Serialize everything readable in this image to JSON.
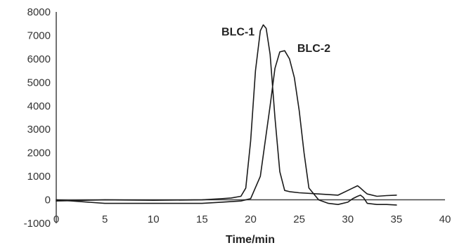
{
  "chart_data": {
    "type": "line",
    "title": "",
    "xlabel": "Time/min",
    "ylabel": "",
    "xlim": [
      0,
      40
    ],
    "ylim": [
      -1000,
      8000
    ],
    "x_ticks": [
      0,
      5,
      10,
      15,
      20,
      25,
      30,
      35,
      40
    ],
    "y_ticks": [
      -1000,
      0,
      1000,
      2000,
      3000,
      4000,
      5000,
      6000,
      7000,
      8000
    ],
    "grid": false,
    "legend": "none",
    "annotations": [
      {
        "text": "BLC-1",
        "x": 17.0,
        "y": 7000
      },
      {
        "text": "BLC-2",
        "x": 24.8,
        "y": 6300
      }
    ],
    "series": [
      {
        "x": [
          0,
          2,
          5,
          10,
          15,
          17,
          18,
          19,
          19.5,
          20,
          20.5,
          21,
          21.3,
          21.6,
          22,
          22.5,
          23,
          23.5,
          24,
          25,
          27,
          29,
          30,
          30.5,
          31,
          31.3,
          31.7,
          32,
          33,
          34,
          35
        ],
        "y": [
          -50,
          -30,
          0,
          -20,
          0,
          50,
          80,
          150,
          500,
          2500,
          5500,
          7200,
          7450,
          7300,
          6200,
          3500,
          1200,
          400,
          350,
          300,
          250,
          200,
          400,
          500,
          600,
          500,
          350,
          250,
          150,
          180,
          200
        ],
        "color": "#1a1a1a"
      },
      {
        "x": [
          0,
          5,
          10,
          15,
          17,
          19,
          20,
          21,
          22,
          22.5,
          23,
          23.5,
          24,
          24.5,
          25,
          25.5,
          26,
          27,
          28,
          29,
          30,
          30.5,
          31,
          31.3,
          31.6,
          32,
          33,
          34,
          35
        ],
        "y": [
          0,
          -150,
          -150,
          -150,
          -100,
          -50,
          50,
          1000,
          4000,
          5600,
          6300,
          6350,
          6000,
          5200,
          3800,
          2000,
          500,
          0,
          -150,
          -200,
          -100,
          50,
          150,
          200,
          100,
          -150,
          -200,
          -200,
          -220
        ],
        "color": "#1a1a1a"
      }
    ]
  }
}
